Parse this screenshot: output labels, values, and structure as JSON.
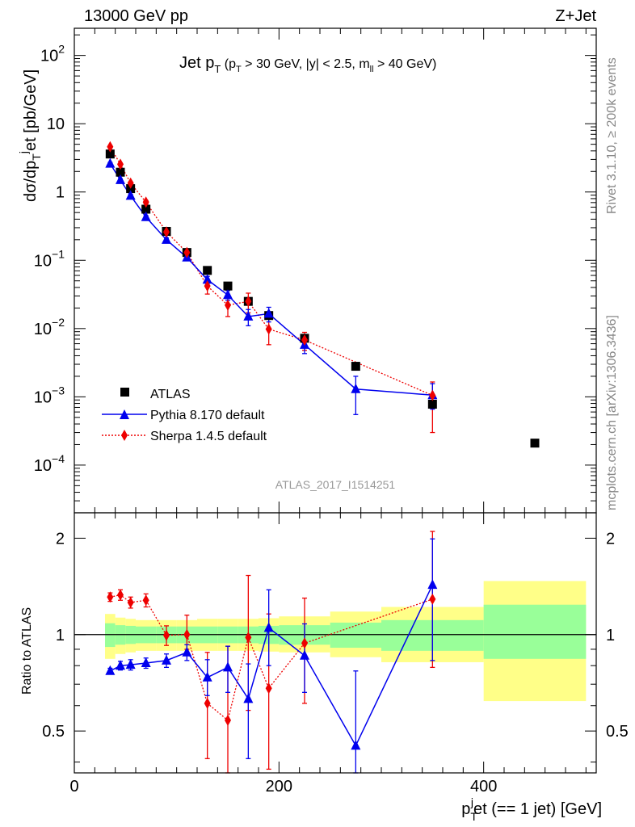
{
  "header": {
    "energy_label": "13000 GeV pp",
    "process_label": "Z+Jet"
  },
  "side_labels": {
    "rivet": "Rivet 3.1.10, ≥ 200k events",
    "mcplots": "mcplots.cern.ch [arXiv:1306.3436]"
  },
  "analysis_id": "ATLAS_2017_I1514251",
  "colors": {
    "data": "#000000",
    "pythia": "#0000ee",
    "sherpa": "#ee0000",
    "band_inner": "#99ff99",
    "band_outer": "#ffff88"
  },
  "chart_data": [
    {
      "type": "scatter",
      "panel": "main",
      "title": {
        "main": "Jet p",
        "sub": "T",
        "cond_1": " (p",
        "cond_2": "T",
        "cond_3": " > 30 GeV, |y| < 2.5, m",
        "cond_4": "ll",
        "cond_5": " > 40 GeV)"
      },
      "ylabel": "dσ/dp_T^jet [pb/GeV]",
      "yscale": "log",
      "ylim": [
        2e-05,
        250
      ],
      "xlim": [
        0,
        510
      ],
      "x_ticks": [
        0,
        200,
        400
      ],
      "y_ticks": [
        {
          "value": 0.0001,
          "mantissa": "10",
          "exp": "−4"
        },
        {
          "value": 0.001,
          "mantissa": "10",
          "exp": "−3"
        },
        {
          "value": 0.01,
          "mantissa": "10",
          "exp": "−2"
        },
        {
          "value": 0.1,
          "mantissa": "10",
          "exp": "−1"
        },
        {
          "value": 1,
          "mantissa": "1",
          "exp": ""
        },
        {
          "value": 10,
          "mantissa": "10",
          "exp": ""
        },
        {
          "value": 100,
          "mantissa": "10",
          "exp": "2"
        }
      ],
      "legend_position": "bottom-left",
      "series": [
        {
          "name": "ATLAS",
          "key": "data",
          "x": [
            35,
            45,
            55,
            70,
            90,
            110,
            130,
            150,
            170,
            190,
            225,
            275,
            350,
            450
          ],
          "y": [
            3.6,
            1.95,
            1.12,
            0.56,
            0.265,
            0.13,
            0.071,
            0.042,
            0.025,
            0.0155,
            0.0072,
            0.0028,
            0.00078,
            0.00021
          ]
        },
        {
          "name": "Pythia 8.170 default",
          "key": "pythia",
          "x": [
            35,
            45,
            55,
            70,
            90,
            110,
            130,
            150,
            170,
            190,
            225,
            275,
            350
          ],
          "y": [
            2.6,
            1.5,
            0.88,
            0.43,
            0.2,
            0.11,
            0.052,
            0.031,
            0.015,
            0.0165,
            0.0058,
            0.0013,
            0.00106
          ],
          "err_lo": [
            0.1,
            0.06,
            0.04,
            0.02,
            0.012,
            0.008,
            0.006,
            0.005,
            0.004,
            0.004,
            0.0015,
            0.00075,
            0.0004
          ],
          "err_hi": [
            0.1,
            0.06,
            0.04,
            0.02,
            0.012,
            0.008,
            0.006,
            0.005,
            0.004,
            0.004,
            0.0015,
            0.0007,
            0.0005
          ]
        },
        {
          "name": "Sherpa 1.4.5 default",
          "key": "sherpa",
          "x": [
            35,
            45,
            55,
            70,
            90,
            110,
            130,
            150,
            170,
            190,
            225,
            350
          ],
          "y": [
            4.6,
            2.55,
            1.35,
            0.71,
            0.26,
            0.13,
            0.042,
            0.022,
            0.025,
            0.0098,
            0.0068,
            0.00105
          ],
          "err_lo": [
            0.15,
            0.1,
            0.06,
            0.04,
            0.015,
            0.009,
            0.01,
            0.007,
            0.008,
            0.004,
            0.002,
            0.00075
          ],
          "err_hi": [
            0.15,
            0.1,
            0.06,
            0.04,
            0.015,
            0.009,
            0.01,
            0.007,
            0.008,
            0.004,
            0.002,
            0.0006
          ]
        }
      ]
    },
    {
      "type": "scatter",
      "panel": "ratio",
      "ylabel": "Ratio to ATLAS",
      "yscale": "log",
      "ylim": [
        0.37,
        2.4
      ],
      "xlim": [
        0,
        510
      ],
      "xlabel": {
        "main": "p",
        "sub": "T",
        "sup": "j",
        "rest": "et (== 1 jet) [GeV]"
      },
      "y_ticks": [
        0.5,
        1,
        2
      ],
      "reference_line": 1,
      "band_bins": [
        {
          "x0": 30,
          "x1": 40,
          "inner": [
            0.915,
            1.085
          ],
          "outer": [
            0.84,
            1.16
          ]
        },
        {
          "x0": 40,
          "x1": 50,
          "inner": [
            0.93,
            1.07
          ],
          "outer": [
            0.87,
            1.13
          ]
        },
        {
          "x0": 50,
          "x1": 60,
          "inner": [
            0.935,
            1.065
          ],
          "outer": [
            0.88,
            1.12
          ]
        },
        {
          "x0": 60,
          "x1": 80,
          "inner": [
            0.94,
            1.06
          ],
          "outer": [
            0.89,
            1.11
          ]
        },
        {
          "x0": 80,
          "x1": 100,
          "inner": [
            0.94,
            1.06
          ],
          "outer": [
            0.89,
            1.11
          ]
        },
        {
          "x0": 100,
          "x1": 120,
          "inner": [
            0.94,
            1.06
          ],
          "outer": [
            0.89,
            1.11
          ]
        },
        {
          "x0": 120,
          "x1": 140,
          "inner": [
            0.94,
            1.06
          ],
          "outer": [
            0.89,
            1.12
          ]
        },
        {
          "x0": 140,
          "x1": 160,
          "inner": [
            0.94,
            1.06
          ],
          "outer": [
            0.89,
            1.12
          ]
        },
        {
          "x0": 160,
          "x1": 180,
          "inner": [
            0.94,
            1.06
          ],
          "outer": [
            0.89,
            1.12
          ]
        },
        {
          "x0": 180,
          "x1": 200,
          "inner": [
            0.935,
            1.065
          ],
          "outer": [
            0.885,
            1.125
          ]
        },
        {
          "x0": 200,
          "x1": 250,
          "inner": [
            0.93,
            1.07
          ],
          "outer": [
            0.88,
            1.14
          ]
        },
        {
          "x0": 250,
          "x1": 300,
          "inner": [
            0.91,
            1.09
          ],
          "outer": [
            0.85,
            1.18
          ]
        },
        {
          "x0": 300,
          "x1": 400,
          "inner": [
            0.89,
            1.11
          ],
          "outer": [
            0.82,
            1.22
          ]
        },
        {
          "x0": 400,
          "x1": 500,
          "inner": [
            0.84,
            1.24
          ],
          "outer": [
            0.62,
            1.47
          ]
        }
      ],
      "series": [
        {
          "name": "Pythia 8.170 default",
          "key": "pythia",
          "x": [
            35,
            45,
            55,
            70,
            90,
            110,
            130,
            150,
            170,
            190,
            225,
            275,
            350
          ],
          "y": [
            0.77,
            0.8,
            0.805,
            0.815,
            0.83,
            0.88,
            0.735,
            0.79,
            0.63,
            1.05,
            0.86,
            0.45,
            1.43
          ],
          "err_lo": [
            0.015,
            0.025,
            0.03,
            0.03,
            0.04,
            0.05,
            0.09,
            0.13,
            0.22,
            0.25,
            0.2,
            0.1,
            0.6
          ],
          "err_hi": [
            0.015,
            0.025,
            0.03,
            0.03,
            0.04,
            0.05,
            0.1,
            0.13,
            0.18,
            0.33,
            0.22,
            0.32,
            0.56
          ]
        },
        {
          "name": "Sherpa 1.4.5 default",
          "key": "sherpa",
          "x": [
            35,
            45,
            55,
            70,
            90,
            110,
            130,
            150,
            170,
            190,
            225,
            350
          ],
          "y": [
            1.31,
            1.33,
            1.26,
            1.28,
            0.995,
            1.0,
            0.61,
            0.54,
            0.98,
            0.68,
            0.94,
            1.29
          ],
          "err_lo": [
            0.04,
            0.05,
            0.05,
            0.06,
            0.07,
            0.1,
            0.2,
            0.2,
            0.4,
            0.3,
            0.33,
            0.5
          ],
          "err_hi": [
            0.04,
            0.05,
            0.05,
            0.06,
            0.07,
            0.15,
            0.27,
            0.38,
            0.55,
            0.48,
            0.36,
            0.81
          ]
        }
      ]
    }
  ]
}
